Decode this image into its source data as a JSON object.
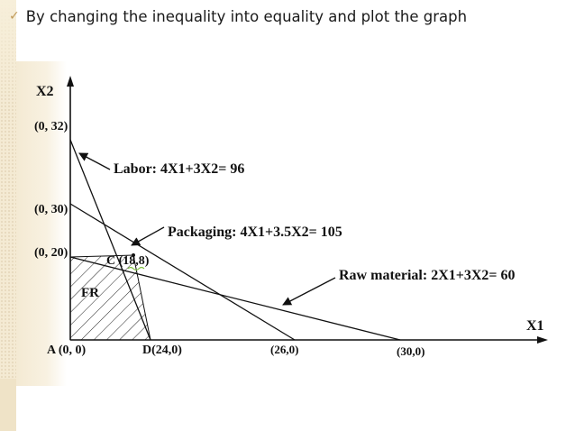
{
  "bullet": {
    "check_icon": "checkmark-icon",
    "text": "By changing the inequality into equality and plot the graph"
  },
  "colors": {
    "accent": "#c09a5a",
    "background_band": "#f4ead3",
    "text": "#111111",
    "highlight": "#7fbf3f"
  },
  "diagram": {
    "y_axis_label": "X2",
    "x_axis_label": "X1",
    "points": {
      "y32": "(0, 32)",
      "y30": "(0, 30)",
      "y20": "(0, 20)",
      "origin": "A (0, 0)",
      "d": "D(24,0)",
      "x26": "(26,0)",
      "x30": "(30,0)",
      "c": "C (18,8)"
    },
    "constraints": {
      "labor": "Labor: 4X1+3X2= 96",
      "packaging": "Packaging: 4X1+3.5X2= 105",
      "raw_material": "Raw material: 2X1+3X2= 60"
    },
    "region_label": "FR"
  }
}
